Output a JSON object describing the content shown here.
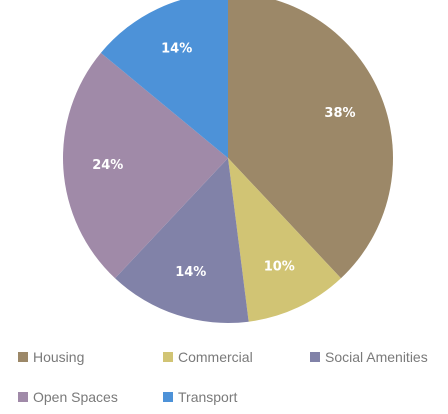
{
  "chart_data": {
    "type": "pie",
    "title": "",
    "legend_position": "bottom",
    "categories": [
      "Housing",
      "Commercial",
      "Social Amenities",
      "Open Spaces",
      "Transport"
    ],
    "values": [
      38,
      10,
      14,
      24,
      14
    ],
    "labels": [
      "38%",
      "10%",
      "14%",
      "24%",
      "14%"
    ],
    "colors": [
      "#9c8868",
      "#d1c474",
      "#8182a8",
      "#a08aa8",
      "#4d92d8"
    ],
    "start_angle_deg": 0,
    "direction": "clockwise"
  }
}
